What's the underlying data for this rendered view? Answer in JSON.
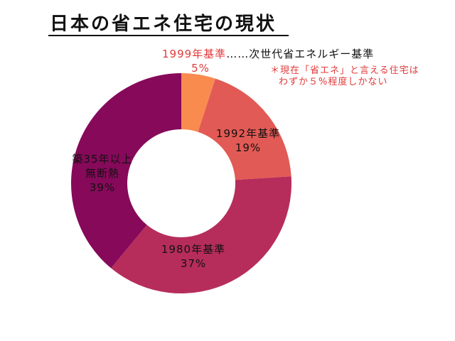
{
  "title": "日本の省エネ住宅の現状",
  "callout": {
    "label_1999": "1999年基準",
    "dots": "……",
    "next_gen": "次世代省エネルギー基準",
    "pct_1999": "5%"
  },
  "note": {
    "line1": "＊現在「省エネ」と言える住宅は",
    "line2": "わずか５%程度しかない"
  },
  "colors": {
    "title": "#111111",
    "note_red": "#e13a3a",
    "slice_1999": "#f98b4f",
    "slice_1992": "#e25a55",
    "slice_1980": "#b62d5c",
    "slice_old": "#86095a"
  },
  "chart_data": {
    "type": "pie",
    "donut": true,
    "start": "12 o'clock",
    "direction": "clockwise",
    "slices": [
      {
        "label_lines": [
          "1999年基準"
        ],
        "value": 5,
        "value_text": "5%",
        "color": "#f98b4f"
      },
      {
        "label_lines": [
          "1992年基準"
        ],
        "value": 19,
        "value_text": "19%",
        "color": "#e25a55"
      },
      {
        "label_lines": [
          "1980年基準"
        ],
        "value": 37,
        "value_text": "37%",
        "color": "#b62d5c"
      },
      {
        "label_lines": [
          "築35年以上",
          "無断熱"
        ],
        "value": 39,
        "value_text": "39%",
        "color": "#86095a"
      }
    ]
  }
}
